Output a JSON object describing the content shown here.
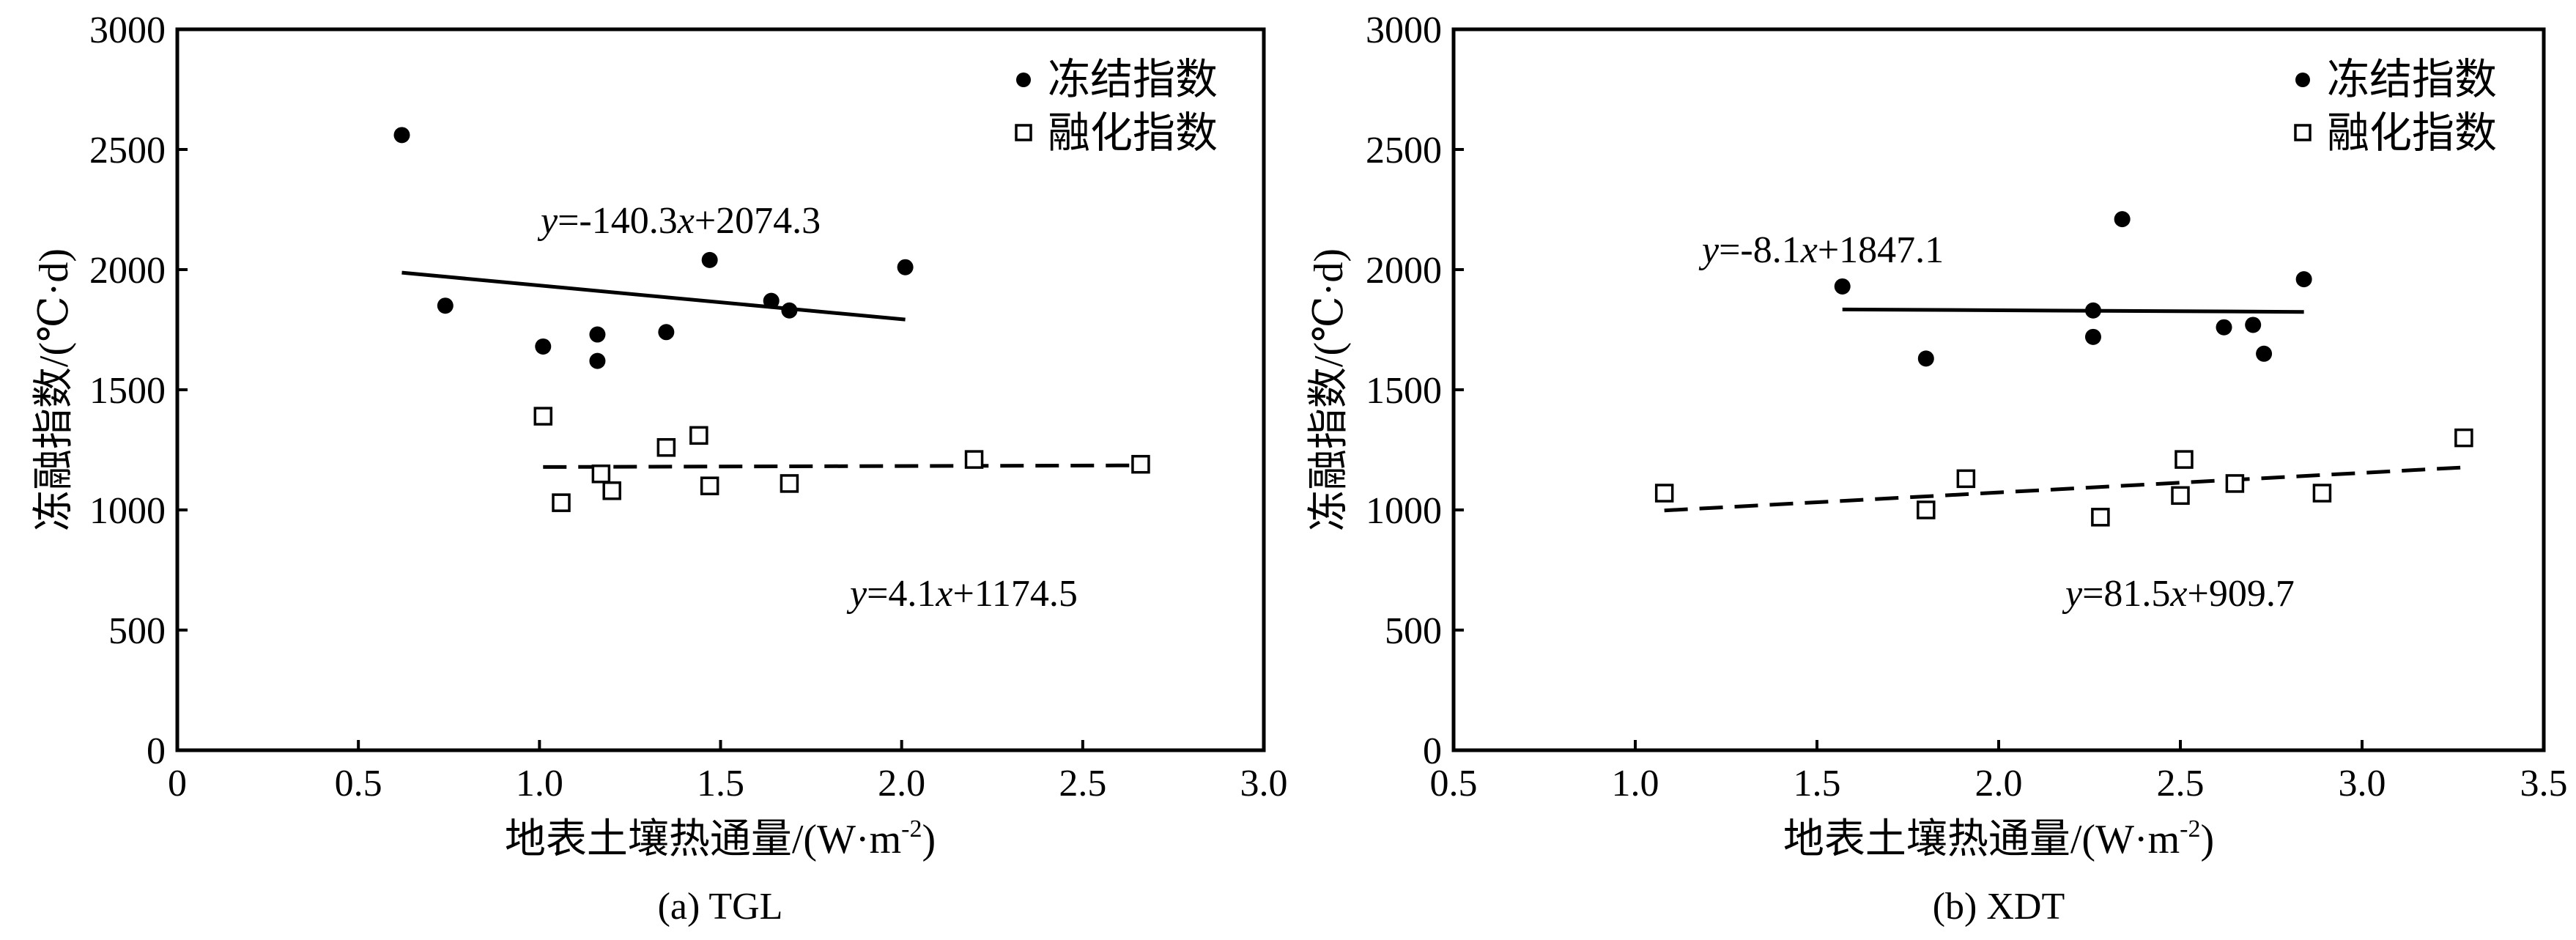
{
  "chart_data": [
    {
      "type": "scatter",
      "caption": "(a) TGL",
      "xlabel": "地表土壤热通量/(W·m",
      "xlabel_sup": "-2",
      "xlabel_end": ")",
      "ylabel": "冻融指数/(℃·d)",
      "xlim": [
        0,
        3.0
      ],
      "ylim": [
        0,
        3000
      ],
      "x_ticks": [
        0,
        0.5,
        1.0,
        1.5,
        2.0,
        2.5,
        3.0
      ],
      "x_tick_labels": [
        "0",
        "0.5",
        "1.0",
        "1.5",
        "2.0",
        "2.5",
        "3.0"
      ],
      "y_ticks": [
        0,
        500,
        1000,
        1500,
        2000,
        2500,
        3000
      ],
      "y_tick_labels": [
        "0",
        "500",
        "1000",
        "1500",
        "2000",
        "2500",
        "3000"
      ],
      "legend_position": "top-right",
      "series": [
        {
          "name": "冻结指数",
          "marker": "filled-circle",
          "points": [
            [
              0.62,
              2560
            ],
            [
              0.74,
              1850
            ],
            [
              1.01,
              1680
            ],
            [
              1.16,
              1730
            ],
            [
              1.16,
              1620
            ],
            [
              1.35,
              1740
            ],
            [
              1.47,
              2040
            ],
            [
              1.64,
              1870
            ],
            [
              1.69,
              1830
            ],
            [
              2.01,
              2010
            ]
          ],
          "fit": {
            "slope": -140.3,
            "intercept": 2074.3,
            "x_range": [
              0.62,
              2.01
            ],
            "style": "solid"
          },
          "equation": {
            "y": "y",
            "mid1": "=-140.3",
            "x": "x",
            "tail": "+2074.3"
          }
        },
        {
          "name": "融化指数",
          "marker": "open-square",
          "points": [
            [
              1.01,
              1390
            ],
            [
              1.06,
              1030
            ],
            [
              1.17,
              1150
            ],
            [
              1.2,
              1080
            ],
            [
              1.35,
              1260
            ],
            [
              1.44,
              1310
            ],
            [
              1.47,
              1100
            ],
            [
              1.69,
              1110
            ],
            [
              2.2,
              1210
            ],
            [
              2.66,
              1190
            ]
          ],
          "fit": {
            "slope": 4.1,
            "intercept": 1174.5,
            "x_range": [
              1.01,
              2.66
            ],
            "style": "dashed"
          },
          "equation": {
            "y": "y",
            "mid1": "=4.1",
            "x": "x",
            "tail": "+1174.5"
          }
        }
      ]
    },
    {
      "type": "scatter",
      "caption": "(b) XDT",
      "xlabel": "地表土壤热通量/(W·m",
      "xlabel_sup": "-2",
      "xlabel_end": ")",
      "ylabel": "冻融指数/(℃·d)",
      "xlim": [
        0.5,
        3.5
      ],
      "ylim": [
        0,
        3000
      ],
      "x_ticks": [
        0.5,
        1.0,
        1.5,
        2.0,
        2.5,
        3.0,
        3.5
      ],
      "x_tick_labels": [
        "0.5",
        "1.0",
        "1.5",
        "2.0",
        "2.5",
        "3.0",
        "3.5"
      ],
      "y_ticks": [
        0,
        500,
        1000,
        1500,
        2000,
        2500,
        3000
      ],
      "y_tick_labels": [
        "0",
        "500",
        "1000",
        "1500",
        "2000",
        "2500",
        "3000"
      ],
      "legend_position": "top-right",
      "series": [
        {
          "name": "冻结指数",
          "marker": "filled-circle",
          "points": [
            [
              1.57,
              1930
            ],
            [
              1.8,
              1630
            ],
            [
              2.26,
              1830
            ],
            [
              2.26,
              1720
            ],
            [
              2.34,
              2210
            ],
            [
              2.62,
              1760
            ],
            [
              2.7,
              1770
            ],
            [
              2.73,
              1650
            ],
            [
              2.84,
              1960
            ]
          ],
          "fit": {
            "slope": -8.1,
            "intercept": 1847.1,
            "x_range": [
              1.57,
              2.84
            ],
            "style": "solid"
          },
          "equation": {
            "y": "y",
            "mid1": "=-8.1",
            "x": "x",
            "tail": "+1847.1"
          }
        },
        {
          "name": "融化指数",
          "marker": "open-square",
          "points": [
            [
              1.08,
              1070
            ],
            [
              1.8,
              1000
            ],
            [
              1.91,
              1130
            ],
            [
              2.28,
              970
            ],
            [
              2.5,
              1060
            ],
            [
              2.51,
              1210
            ],
            [
              2.65,
              1110
            ],
            [
              2.89,
              1070
            ],
            [
              3.28,
              1300
            ]
          ],
          "fit": {
            "slope": 81.5,
            "intercept": 909.7,
            "x_range": [
              1.08,
              3.28
            ],
            "style": "dashed"
          },
          "equation": {
            "y": "y",
            "mid1": "=81.5",
            "x": "x",
            "tail": "+909.7"
          }
        }
      ]
    }
  ]
}
